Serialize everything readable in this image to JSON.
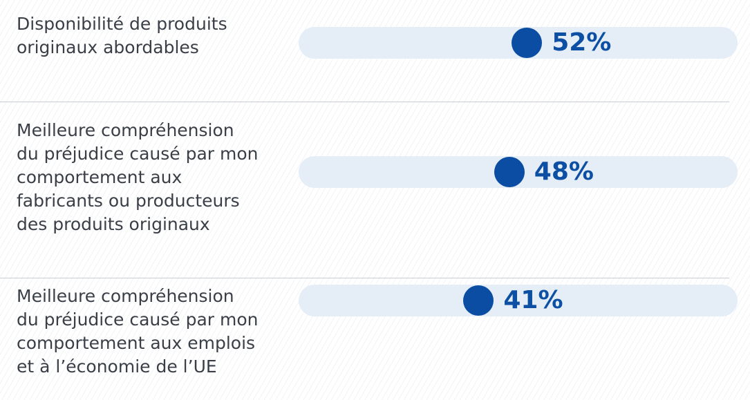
{
  "chart_data": {
    "type": "dot",
    "categories": [
      "Disponibilité de produits originaux abordables",
      "Meilleure compréhension du préjudice causé par mon comportement aux fabricants ou producteurs des produits originaux",
      "Meilleure compréhension du préjudice causé par mon comportement aux emplois et à l’économie de l’UE"
    ],
    "values": [
      52,
      48,
      41
    ],
    "value_labels": [
      "52%",
      "48%",
      "41%"
    ],
    "color": "#0b4da2",
    "xlim": [
      0,
      100
    ]
  }
}
